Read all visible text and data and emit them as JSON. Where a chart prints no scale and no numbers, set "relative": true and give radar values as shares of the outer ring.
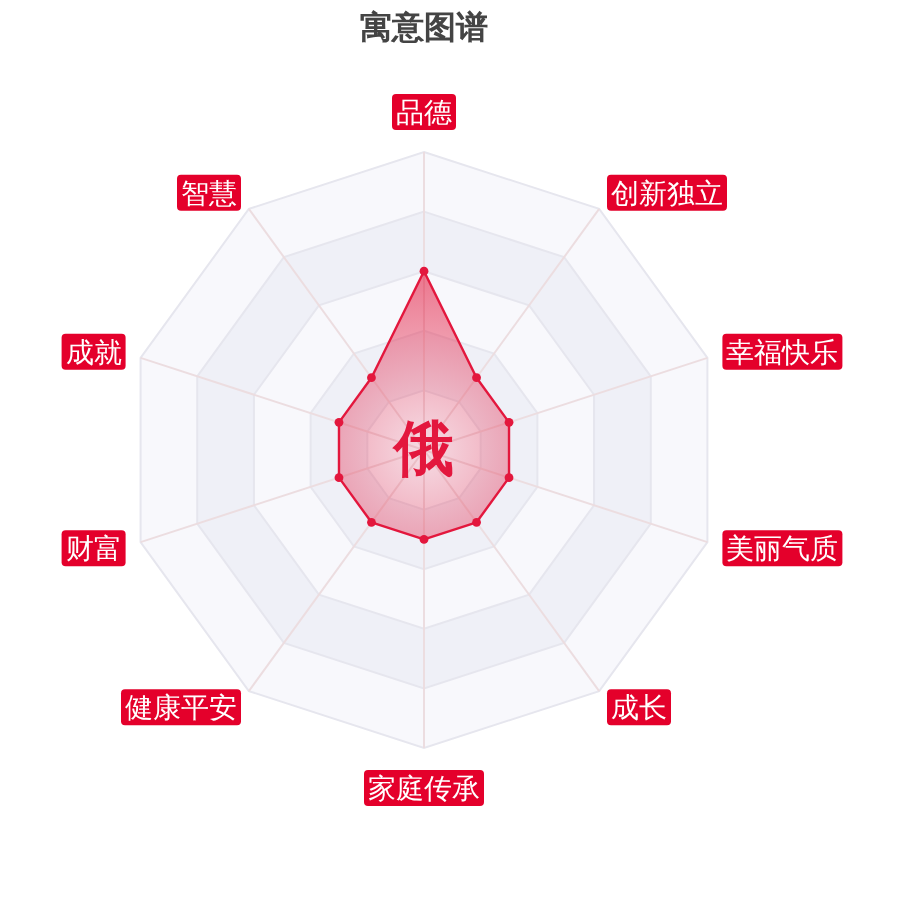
{
  "chart_data": {
    "type": "radar",
    "title": "寓意图谱",
    "categories": [
      "品德",
      "创新独立",
      "幸福快乐",
      "美丽气质",
      "成长",
      "家庭传承",
      "健康平安",
      "财富",
      "成就",
      "智慧"
    ],
    "relative": true,
    "series": [
      {
        "color": "#e3173d",
        "values": [
          0.6,
          0.3,
          0.3,
          0.3,
          0.3,
          0.3,
          0.3,
          0.3,
          0.3,
          0.3
        ]
      }
    ],
    "marker": "circle",
    "grid": true,
    "annotations": [
      "俄"
    ]
  }
}
